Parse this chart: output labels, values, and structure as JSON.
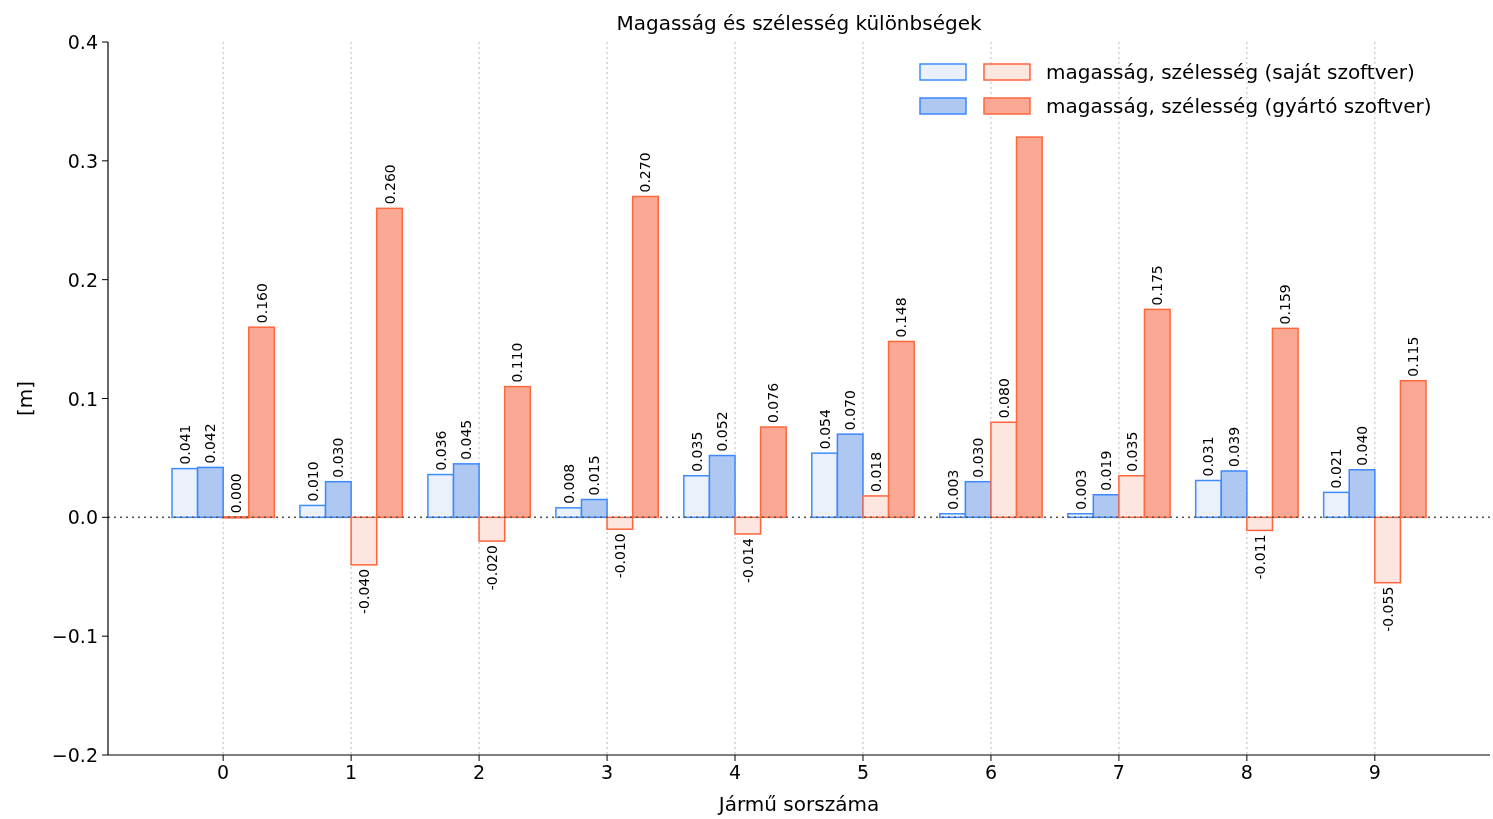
{
  "chart_data": {
    "type": "bar",
    "title": "Magasság és szélesség különbségek",
    "xlabel": "Jármű sorszáma",
    "ylabel": "[m]",
    "categories": [
      "0",
      "1",
      "2",
      "3",
      "4",
      "5",
      "6",
      "7",
      "8",
      "9"
    ],
    "series": [
      {
        "color": "#eaf1fb",
        "values": [
          0.041,
          0.01,
          0.036,
          0.008,
          0.035,
          0.054,
          0.003,
          0.003,
          0.031,
          0.021
        ],
        "value_labels": [
          "0.041",
          "0.010",
          "0.036",
          "0.008",
          "0.035",
          "0.054",
          "0.003",
          "0.003",
          "0.031",
          "0.021"
        ]
      },
      {
        "color": "#aec8f2",
        "values": [
          0.042,
          0.03,
          0.045,
          0.015,
          0.052,
          0.07,
          0.03,
          0.019,
          0.039,
          0.04
        ],
        "value_labels": [
          "0.042",
          "0.030",
          "0.045",
          "0.015",
          "0.052",
          "0.070",
          "0.030",
          "0.019",
          "0.039",
          "0.040"
        ]
      },
      {
        "name": "magasság, szélesség (saját szoftver)",
        "color": "#fde6e0",
        "values": [
          0.0,
          -0.04,
          -0.02,
          -0.01,
          -0.014,
          0.018,
          0.08,
          0.035,
          -0.011,
          -0.055
        ],
        "value_labels": [
          "0.000",
          "-0.040",
          "-0.020",
          "-0.010",
          "-0.014",
          "0.018",
          "0.080",
          "0.035",
          "-0.011",
          "-0.055"
        ]
      },
      {
        "name": "magasság, szélesség (gyártó szoftver)",
        "color": "#f9a993",
        "values": [
          0.16,
          0.26,
          0.11,
          0.27,
          0.076,
          0.148,
          0.32,
          0.175,
          0.159,
          0.115
        ],
        "value_labels": [
          "0.160",
          "0.260",
          "0.110",
          "0.270",
          "0.076",
          "0.148",
          null,
          "0.175",
          "0.159",
          "0.115"
        ]
      }
    ],
    "ylim": [
      -0.2,
      0.4
    ],
    "yticks": [
      {
        "value": -0.2,
        "label": "−0.2"
      },
      {
        "value": -0.1,
        "label": "−0.1"
      },
      {
        "value": 0,
        "label": "0.0"
      },
      0.1,
      0.2,
      0.3,
      0.4
    ],
    "grid": "x",
    "legend": "top right",
    "ref_lines": [
      {
        "axis": "y",
        "value": 0,
        "color": "#555555",
        "line_style": "dotted"
      }
    ]
  }
}
